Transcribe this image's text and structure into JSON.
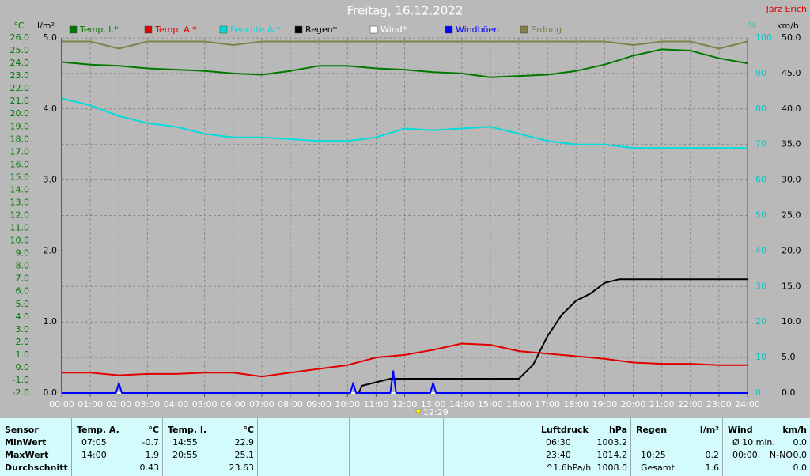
{
  "chart_data": {
    "type": "line",
    "title": "Freitag, 16.12.2022",
    "author": "Jarz Erich",
    "cursor_label": "12:29",
    "y_label": "°C",
    "y2_label": "l/m²",
    "y3_label": "%",
    "y4_label": "km/h",
    "grid": true,
    "xlim": [
      0,
      24
    ],
    "xticks": [
      {
        "value": 0,
        "label": "00:00"
      },
      {
        "value": 1,
        "label": "01:00"
      },
      {
        "value": 2,
        "label": "02:00"
      },
      {
        "value": 3,
        "label": "03:00"
      },
      {
        "value": 4,
        "label": "04:00"
      },
      {
        "value": 5,
        "label": "05:00"
      },
      {
        "value": 6,
        "label": "06:00"
      },
      {
        "value": 7,
        "label": "07:00"
      },
      {
        "value": 8,
        "label": "08:00"
      },
      {
        "value": 9,
        "label": "09:00"
      },
      {
        "value": 10,
        "label": "10:00"
      },
      {
        "value": 11,
        "label": "11:00"
      },
      {
        "value": 12,
        "label": "12:00"
      },
      {
        "value": 13,
        "label": "13:00"
      },
      {
        "value": 14,
        "label": "14:00"
      },
      {
        "value": 15,
        "label": "15:00"
      },
      {
        "value": 16,
        "label": "16:00"
      },
      {
        "value": 17,
        "label": "17:00"
      },
      {
        "value": 18,
        "label": "18:00"
      },
      {
        "value": 19,
        "label": "19:00"
      },
      {
        "value": 20,
        "label": "20:00"
      },
      {
        "value": 21,
        "label": "21:00"
      },
      {
        "value": 22,
        "label": "22:00"
      },
      {
        "value": 23,
        "label": "23:00"
      },
      {
        "value": 24,
        "label": "24:00"
      }
    ],
    "ylim": [
      -2,
      26
    ],
    "yticks": [
      {
        "value": 26,
        "label": "26.0"
      },
      {
        "value": 25,
        "label": "25.0"
      },
      {
        "value": 24,
        "label": "24.0"
      },
      {
        "value": 23,
        "label": "23.0"
      },
      {
        "value": 22,
        "label": "22.0"
      },
      {
        "value": 21,
        "label": "21.0"
      },
      {
        "value": 20,
        "label": "20.0"
      },
      {
        "value": 19,
        "label": "19.0"
      },
      {
        "value": 18,
        "label": "18.0"
      },
      {
        "value": 17,
        "label": "17.0"
      },
      {
        "value": 16,
        "label": "16.0"
      },
      {
        "value": 15,
        "label": "15.0"
      },
      {
        "value": 14,
        "label": "14.0"
      },
      {
        "value": 13,
        "label": "13.0"
      },
      {
        "value": 12,
        "label": "12.0"
      },
      {
        "value": 11,
        "label": "11.0"
      },
      {
        "value": 10,
        "label": "10.0"
      },
      {
        "value": 9,
        "label": "9.0"
      },
      {
        "value": 8,
        "label": "8.0"
      },
      {
        "value": 7,
        "label": "7.0"
      },
      {
        "value": 6,
        "label": "6.0"
      },
      {
        "value": 5,
        "label": "5.0"
      },
      {
        "value": 4,
        "label": "4.0"
      },
      {
        "value": 3,
        "label": "3.0"
      },
      {
        "value": 2,
        "label": "2.0"
      },
      {
        "value": 1,
        "label": "1.0"
      },
      {
        "value": 0,
        "label": "0.0"
      },
      {
        "value": -1,
        "label": "-1.0"
      },
      {
        "value": -2,
        "label": "-2.0"
      }
    ],
    "y2lim": [
      0,
      5
    ],
    "y2ticks": [
      {
        "value": 5,
        "label": "5.0"
      },
      {
        "value": 4,
        "label": "4.0"
      },
      {
        "value": 3,
        "label": "3.0"
      },
      {
        "value": 2,
        "label": "2.0"
      },
      {
        "value": 1,
        "label": "1.0"
      },
      {
        "value": 0,
        "label": "0.0"
      }
    ],
    "y3lim": [
      0,
      100
    ],
    "y3ticks": [
      100,
      90,
      80,
      70,
      60,
      50,
      40,
      30,
      20,
      10,
      0
    ],
    "y4lim": [
      0,
      50
    ],
    "y4ticks": [
      {
        "value": 50,
        "label": "50.0"
      },
      {
        "value": 45,
        "label": "45.0"
      },
      {
        "value": 40,
        "label": "40.0"
      },
      {
        "value": 35,
        "label": "35.0"
      },
      {
        "value": 30,
        "label": "30.0"
      },
      {
        "value": 25,
        "label": "25.0"
      },
      {
        "value": 20,
        "label": "20.0"
      },
      {
        "value": 15,
        "label": "15.0"
      },
      {
        "value": 10,
        "label": "10.0"
      },
      {
        "value": 5,
        "label": "5.0"
      },
      {
        "value": 0,
        "label": "0.0"
      }
    ],
    "x": [
      0,
      1,
      2,
      3,
      4,
      5,
      6,
      7,
      8,
      9,
      10,
      11,
      12,
      13,
      14,
      15,
      16,
      17,
      18,
      19,
      20,
      21,
      22,
      23,
      24
    ],
    "series": [
      {
        "name": "Temp. I.*",
        "color": "#007800",
        "axis": "y",
        "values": [
          24.1,
          23.9,
          23.8,
          23.6,
          23.5,
          23.4,
          23.2,
          23.1,
          23.4,
          23.8,
          23.8,
          23.6,
          23.5,
          23.3,
          23.2,
          22.9,
          23.0,
          23.1,
          23.4,
          23.9,
          24.6,
          25.1,
          25.0,
          24.4,
          24.0
        ]
      },
      {
        "name": "Temp. A.*",
        "color": "#e00000",
        "axis": "y",
        "values": [
          -0.4,
          -0.4,
          -0.6,
          -0.5,
          -0.5,
          -0.4,
          -0.4,
          -0.7,
          -0.4,
          -0.1,
          0.2,
          0.8,
          1.0,
          1.4,
          1.9,
          1.8,
          1.3,
          1.1,
          0.9,
          0.7,
          0.4,
          0.3,
          0.3,
          0.2,
          0.2
        ]
      },
      {
        "name": "Feuchte A.*",
        "color": "#00dcdc",
        "axis": "y3",
        "values": [
          83,
          81,
          78,
          76,
          75,
          73,
          72,
          72,
          71.5,
          71,
          71,
          72,
          74.5,
          74,
          74.5,
          75,
          73,
          71,
          70,
          70,
          69,
          69,
          69,
          69,
          69
        ]
      },
      {
        "name": "Regen*",
        "color": "#000000",
        "axis": "y2",
        "x": [
          0,
          10.4,
          10.5,
          11.5,
          16.0,
          16.5,
          17,
          17.5,
          18,
          18.5,
          19,
          19.5,
          24
        ],
        "values": [
          0,
          0,
          0.1,
          0.2,
          0.2,
          0.4,
          0.8,
          1.1,
          1.3,
          1.4,
          1.55,
          1.6,
          1.6
        ]
      },
      {
        "name": "Wind*",
        "color": "#ffffff",
        "axis": "y4",
        "x": [
          0,
          24
        ],
        "values": [
          0,
          0
        ]
      },
      {
        "name": "Windböen",
        "color": "#0000ff",
        "axis": "y4",
        "x": [
          0,
          1.9,
          2.0,
          2.1,
          10.1,
          10.2,
          10.3,
          11.5,
          11.6,
          11.7,
          12.9,
          13.0,
          13.1,
          24
        ],
        "values": [
          0,
          0,
          1.4,
          0,
          0,
          1.4,
          0,
          0,
          3.1,
          0,
          0,
          1.4,
          0,
          0
        ]
      },
      {
        "name": "Erdung",
        "color": "#808048",
        "axis": "y3",
        "values": [
          99,
          99,
          97,
          99,
          99,
          99,
          98,
          99,
          99,
          99,
          99,
          99,
          99,
          99,
          99,
          99,
          99,
          99,
          99,
          99,
          98,
          99,
          99,
          97,
          99
        ]
      }
    ]
  },
  "stats": {
    "panels": [
      {
        "header": [
          "Sensor"
        ],
        "rows": [
          [
            "MinWert"
          ],
          [
            "MaxWert"
          ],
          [
            "Durchschnitt"
          ]
        ]
      },
      {
        "header": [
          "Temp. A.",
          "°C"
        ],
        "rows": [
          [
            "07:05",
            "-0.7"
          ],
          [
            "14:00",
            "1.9"
          ],
          [
            null,
            "0.43"
          ]
        ]
      },
      {
        "header": [
          "Temp. I.",
          "°C"
        ],
        "rows": [
          [
            "14:55",
            "22.9"
          ],
          [
            "20:55",
            "25.1"
          ],
          [
            null,
            "23.63"
          ]
        ]
      },
      {
        "header": [
          "Luftdruck",
          "hPa"
        ],
        "rows": [
          [
            "06:30",
            "1003.2"
          ],
          [
            "23:40",
            "1014.2"
          ],
          [
            "^1.6hPa/h",
            "1008.0"
          ]
        ]
      },
      {
        "header": [
          "Regen",
          "l/m²"
        ],
        "rows": [
          [
            null,
            null
          ],
          [
            "10:25",
            "0.2"
          ],
          [
            "Gesamt:",
            "1.6"
          ]
        ]
      },
      {
        "header": [
          "Wind",
          "km/h"
        ],
        "rows": [
          [
            "Ø 10 min.",
            null,
            "0.0"
          ],
          [
            "00:00",
            "N-NO",
            "0.0"
          ],
          [
            null,
            null,
            "0.0"
          ]
        ]
      }
    ]
  }
}
